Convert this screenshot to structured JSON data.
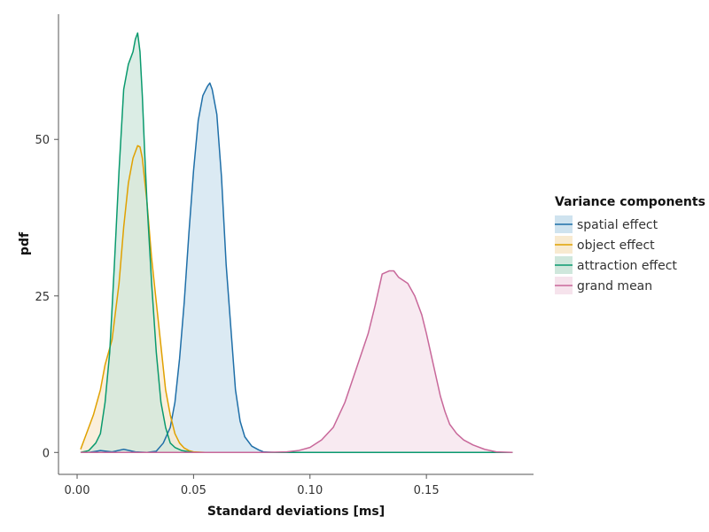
{
  "chart_data": {
    "type": "area",
    "xlabel": "Standard deviations [ms]",
    "ylabel": "pdf",
    "xlim": [
      -0.008,
      0.196
    ],
    "ylim": [
      -3.5,
      70
    ],
    "x_ticks": [
      0.0,
      0.05,
      0.1,
      0.15
    ],
    "x_tick_labels": [
      "0.00",
      "0.05",
      "0.10",
      "0.15"
    ],
    "y_ticks": [
      0,
      25,
      50
    ],
    "y_tick_labels": [
      "0",
      "25",
      "50"
    ],
    "grid": false,
    "legend": {
      "title": "Variance components",
      "position": "right"
    },
    "series": [
      {
        "name": "spatial effect",
        "color": "#1f6fa8",
        "fill": "#cfe3ef",
        "x": [
          0.0015,
          0.005,
          0.01,
          0.015,
          0.02,
          0.025,
          0.03,
          0.034,
          0.037,
          0.04,
          0.042,
          0.044,
          0.046,
          0.048,
          0.05,
          0.052,
          0.054,
          0.056,
          0.057,
          0.058,
          0.06,
          0.062,
          0.064,
          0.066,
          0.068,
          0.07,
          0.072,
          0.075,
          0.078,
          0.08,
          0.085,
          0.09,
          0.1,
          0.12,
          0.15,
          0.187
        ],
        "y": [
          0,
          0,
          0.3,
          0.1,
          0.5,
          0.1,
          0,
          0.2,
          1.5,
          4,
          8,
          15,
          24,
          35,
          45,
          53,
          57,
          58.5,
          59,
          58,
          54,
          44,
          30,
          20,
          10,
          5,
          2.5,
          1,
          0.4,
          0.1,
          0,
          0,
          0,
          0,
          0,
          0
        ]
      },
      {
        "name": "object effect",
        "color": "#e0a100",
        "fill": "#f8ead0",
        "x": [
          0.0015,
          0.004,
          0.007,
          0.01,
          0.012,
          0.015,
          0.018,
          0.02,
          0.022,
          0.024,
          0.026,
          0.027,
          0.028,
          0.03,
          0.032,
          0.034,
          0.036,
          0.038,
          0.04,
          0.042,
          0.044,
          0.046,
          0.048,
          0.05,
          0.055,
          0.06,
          0.1,
          0.15,
          0.187
        ],
        "y": [
          0.5,
          3,
          6,
          10,
          14,
          18,
          27,
          36,
          43,
          47,
          49,
          48.8,
          47,
          40,
          31,
          24,
          17,
          10,
          6,
          3,
          1.5,
          0.7,
          0.3,
          0.1,
          0,
          0,
          0,
          0,
          0
        ]
      },
      {
        "name": "attraction effect",
        "color": "#0a9a6e",
        "fill": "#cfe7dc",
        "x": [
          0.0015,
          0.005,
          0.008,
          0.01,
          0.012,
          0.014,
          0.016,
          0.018,
          0.02,
          0.022,
          0.023,
          0.024,
          0.025,
          0.026,
          0.027,
          0.028,
          0.029,
          0.03,
          0.032,
          0.034,
          0.036,
          0.038,
          0.04,
          0.042,
          0.045,
          0.05,
          0.06,
          0.1,
          0.15,
          0.187
        ],
        "y": [
          0,
          0.3,
          1.5,
          3,
          8,
          16,
          30,
          45,
          58,
          62,
          63,
          64,
          66,
          67,
          64,
          57,
          48,
          40,
          27,
          16,
          8,
          4,
          1.5,
          0.8,
          0.3,
          0,
          0,
          0,
          0,
          0
        ]
      },
      {
        "name": "grand mean",
        "color": "#c8689a",
        "fill": "#f6e3ec",
        "x": [
          0.0015,
          0.08,
          0.09,
          0.095,
          0.1,
          0.105,
          0.11,
          0.115,
          0.12,
          0.125,
          0.128,
          0.131,
          0.134,
          0.136,
          0.138,
          0.14,
          0.142,
          0.145,
          0.148,
          0.15,
          0.153,
          0.156,
          0.158,
          0.16,
          0.163,
          0.166,
          0.17,
          0.175,
          0.18,
          0.187
        ],
        "y": [
          0,
          0,
          0.1,
          0.3,
          0.8,
          2,
          4,
          8,
          13.5,
          19,
          23.5,
          28.5,
          29,
          29,
          28,
          27.5,
          27,
          25,
          22,
          19,
          14,
          9,
          6.5,
          4.5,
          3,
          2,
          1.2,
          0.5,
          0.1,
          0
        ]
      }
    ]
  }
}
